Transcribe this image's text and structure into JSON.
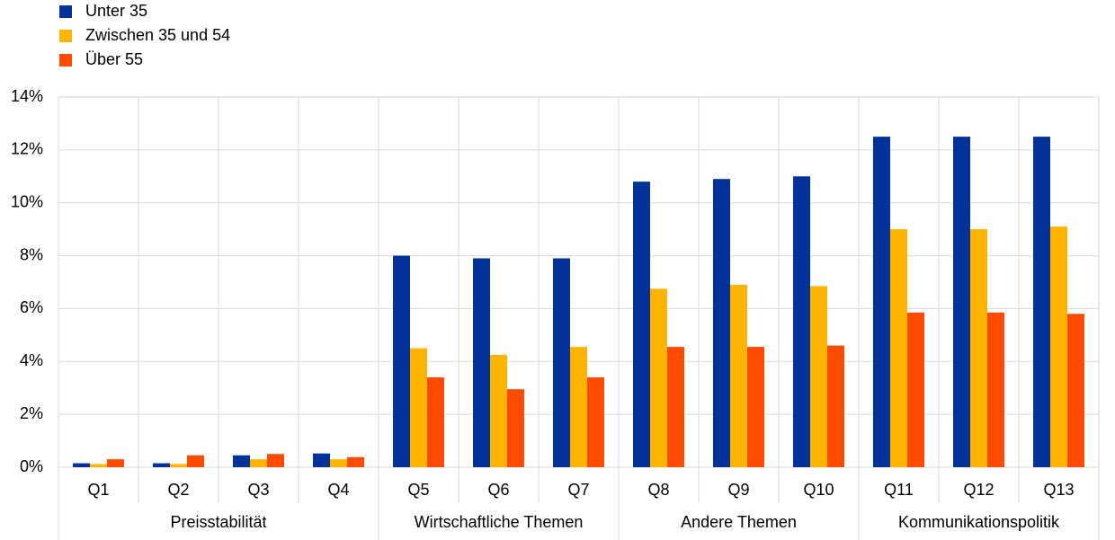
{
  "chart_data": {
    "type": "bar",
    "groups": [
      {
        "name": "Preisstabilität",
        "categories": [
          "Q1",
          "Q2",
          "Q3",
          "Q4"
        ]
      },
      {
        "name": "Wirtschaftliche Themen",
        "categories": [
          "Q5",
          "Q6",
          "Q7"
        ]
      },
      {
        "name": "Andere Themen",
        "categories": [
          "Q8",
          "Q9",
          "Q10"
        ]
      },
      {
        "name": "Kommunikationspolitik",
        "categories": [
          "Q11",
          "Q12",
          "Q13"
        ]
      }
    ],
    "series": [
      {
        "name": "Unter 35",
        "color": "#003299",
        "values": [
          0.15,
          0.15,
          0.45,
          0.52,
          8.0,
          7.9,
          7.9,
          10.8,
          10.9,
          11.0,
          12.5,
          12.5,
          12.5
        ]
      },
      {
        "name": "Zwischen 35 und 54",
        "color": "#ffb400",
        "values": [
          0.12,
          0.12,
          0.3,
          0.3,
          4.5,
          4.25,
          4.55,
          6.75,
          6.9,
          6.85,
          9.0,
          9.0,
          9.1
        ]
      },
      {
        "name": "Über 55",
        "color": "#ff4b00",
        "values": [
          0.3,
          0.45,
          0.5,
          0.38,
          3.4,
          2.95,
          3.4,
          4.55,
          4.55,
          4.6,
          5.85,
          5.85,
          5.8
        ]
      }
    ],
    "ylim": [
      0,
      14
    ],
    "yticks": [
      {
        "value": 0,
        "label": "0%"
      },
      {
        "value": 2,
        "label": "2%"
      },
      {
        "value": 4,
        "label": "4%"
      },
      {
        "value": 6,
        "label": "6%"
      },
      {
        "value": 8,
        "label": "8%"
      },
      {
        "value": 10,
        "label": "10%"
      },
      {
        "value": 12,
        "label": "12%"
      },
      {
        "value": 14,
        "label": "14%"
      }
    ],
    "grid": true,
    "legend": "top-left"
  }
}
